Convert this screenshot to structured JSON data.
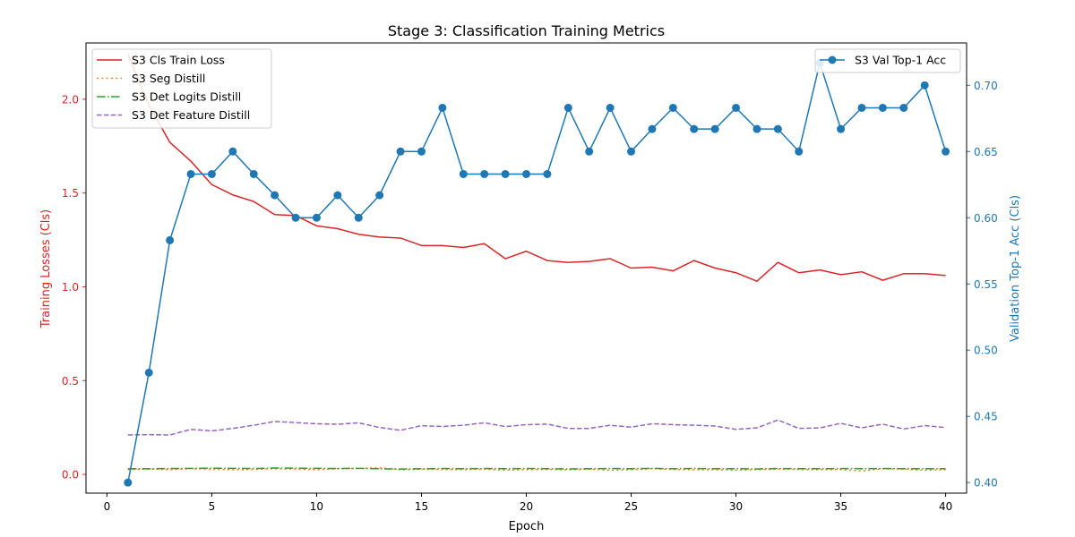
{
  "chart_data": {
    "type": "line",
    "title": "Stage 3: Classification Training Metrics",
    "xlabel": "Epoch",
    "ylabel_left": "Training Losses (Cls)",
    "ylabel_right": "Validation Top-1 Acc (Cls)",
    "xlim": [
      -1,
      41
    ],
    "ylim_left": [
      -0.1,
      2.3
    ],
    "ylim_right": [
      0.392,
      0.732
    ],
    "x_ticks": [
      0,
      5,
      10,
      15,
      20,
      25,
      30,
      35,
      40
    ],
    "x_tick_labels": [
      "0",
      "5",
      "10",
      "15",
      "20",
      "25",
      "30",
      "35",
      "40"
    ],
    "y_left_ticks": [
      0.0,
      0.5,
      1.0,
      1.5,
      2.0
    ],
    "y_left_tick_labels": [
      "0.0",
      "0.5",
      "1.0",
      "1.5",
      "2.0"
    ],
    "y_right_ticks": [
      0.4,
      0.45,
      0.5,
      0.55,
      0.6,
      0.65,
      0.7
    ],
    "y_right_tick_labels": [
      "0.40",
      "0.45",
      "0.50",
      "0.55",
      "0.60",
      "0.65",
      "0.70"
    ],
    "x": [
      1,
      2,
      3,
      4,
      5,
      6,
      7,
      8,
      9,
      10,
      11,
      12,
      13,
      14,
      15,
      16,
      17,
      18,
      19,
      20,
      21,
      22,
      23,
      24,
      25,
      26,
      27,
      28,
      29,
      30,
      31,
      32,
      33,
      34,
      35,
      36,
      37,
      38,
      39,
      40
    ],
    "grid": false,
    "legend_left_position": "upper-left",
    "legend_right_position": "upper-right",
    "left_axis_color": "#d62728",
    "right_axis_color": "#1f77b4",
    "series_left": [
      {
        "name": "S3 Cls Train Loss",
        "color": "#d62728",
        "dash": "solid",
        "values": [
          2.24,
          1.97,
          1.77,
          1.67,
          1.545,
          1.49,
          1.455,
          1.385,
          1.38,
          1.325,
          1.31,
          1.28,
          1.265,
          1.26,
          1.22,
          1.22,
          1.21,
          1.23,
          1.15,
          1.19,
          1.14,
          1.13,
          1.135,
          1.15,
          1.1,
          1.105,
          1.085,
          1.14,
          1.1,
          1.075,
          1.03,
          1.13,
          1.075,
          1.09,
          1.065,
          1.08,
          1.035,
          1.07,
          1.07,
          1.06
        ]
      },
      {
        "name": "S3 Seg Distill",
        "color": "#ff7f0e",
        "dash": "dotted",
        "values": [
          0.025,
          0.028,
          0.025,
          0.03,
          0.027,
          0.025,
          0.026,
          0.03,
          0.028,
          0.025,
          0.03,
          0.032,
          0.035,
          0.025,
          0.027,
          0.026,
          0.025,
          0.028,
          0.022,
          0.025,
          0.026,
          0.024,
          0.028,
          0.022,
          0.025,
          0.03,
          0.026,
          0.024,
          0.025,
          0.022,
          0.025,
          0.028,
          0.026,
          0.025,
          0.025,
          0.018,
          0.03,
          0.028,
          0.022,
          0.025
        ]
      },
      {
        "name": "S3 Det Logits Distill",
        "color": "#2ca02c",
        "dash": "dashdot",
        "values": [
          0.03,
          0.03,
          0.031,
          0.032,
          0.033,
          0.032,
          0.031,
          0.034,
          0.033,
          0.032,
          0.031,
          0.032,
          0.03,
          0.028,
          0.03,
          0.031,
          0.03,
          0.031,
          0.03,
          0.031,
          0.03,
          0.029,
          0.03,
          0.031,
          0.03,
          0.032,
          0.03,
          0.031,
          0.03,
          0.03,
          0.029,
          0.031,
          0.03,
          0.03,
          0.031,
          0.03,
          0.031,
          0.03,
          0.03,
          0.03
        ]
      },
      {
        "name": "S3 Det Feature Distill",
        "color": "#9467bd",
        "dash": "dashed",
        "values": [
          0.21,
          0.212,
          0.21,
          0.24,
          0.232,
          0.245,
          0.262,
          0.282,
          0.276,
          0.27,
          0.267,
          0.275,
          0.25,
          0.235,
          0.26,
          0.255,
          0.262,
          0.275,
          0.255,
          0.265,
          0.268,
          0.245,
          0.245,
          0.262,
          0.252,
          0.27,
          0.265,
          0.262,
          0.258,
          0.24,
          0.248,
          0.29,
          0.245,
          0.248,
          0.272,
          0.248,
          0.268,
          0.242,
          0.26,
          0.25
        ]
      }
    ],
    "series_right": [
      {
        "name": "S3 Val Top-1 Acc",
        "color": "#1f77b4",
        "marker": "circle",
        "values": [
          0.4,
          0.483,
          0.583,
          0.633,
          0.633,
          0.65,
          0.633,
          0.617,
          0.6,
          0.6,
          0.617,
          0.6,
          0.617,
          0.65,
          0.65,
          0.683,
          0.633,
          0.633,
          0.633,
          0.633,
          0.633,
          0.683,
          0.65,
          0.683,
          0.65,
          0.667,
          0.683,
          0.667,
          0.667,
          0.683,
          0.667,
          0.667,
          0.65,
          0.717,
          0.667,
          0.683,
          0.683,
          0.683,
          0.7,
          0.65
        ]
      }
    ]
  }
}
